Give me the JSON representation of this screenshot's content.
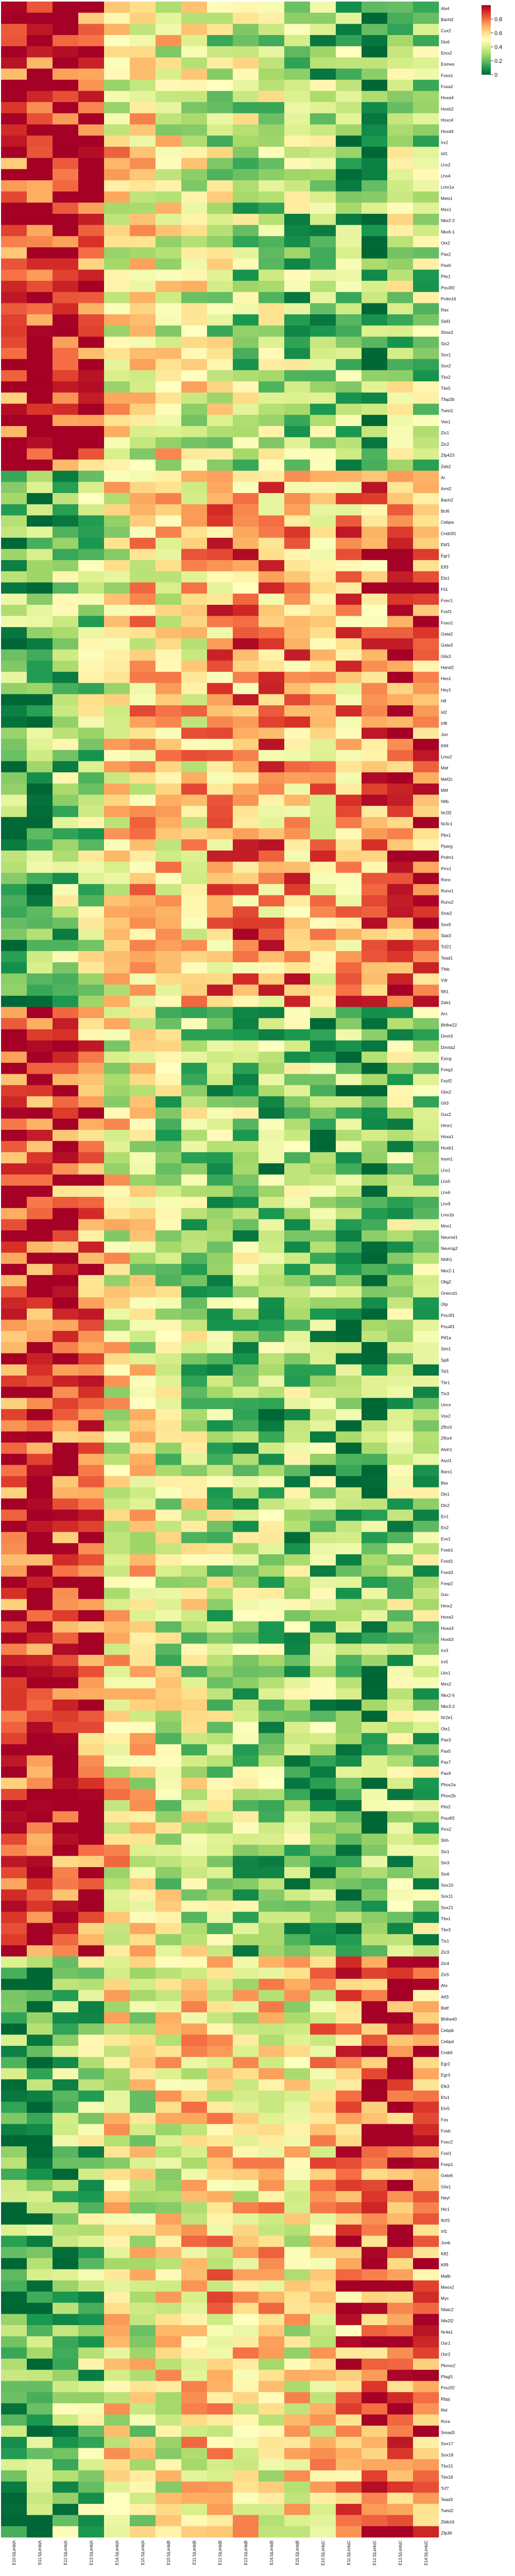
{
  "chart_data": {
    "type": "heatmap",
    "colormap": "RdYlGn_r",
    "colorbar": {
      "range": [
        0,
        1
      ],
      "ticks": [
        "0",
        "0.2",
        "0.4",
        "0.6",
        "0.8"
      ],
      "tick_values": [
        0,
        0.2,
        0.4,
        0.6,
        0.8
      ],
      "colors": [
        "#006837",
        "#1a9850",
        "#66bd63",
        "#a6d96a",
        "#d9ef8b",
        "#ffffbf",
        "#fee08b",
        "#fdae61",
        "#f46d43",
        "#d73027",
        "#a50026"
      ]
    },
    "columns": [
      "E10.5|Limb|A",
      "E11.5|Limb|A",
      "E12.5|Limb|A",
      "E13.5|Limb|A",
      "E14.5|Limb|A",
      "E15.5|Limb|A",
      "E10.5|Limb|B",
      "E11.5|Limb|B",
      "E12.5|Limb|B",
      "E13.5|Limb|B",
      "E14.5|Limb|B",
      "E15.5|Limb|B",
      "E10.5|Limb|C",
      "E11.5|Limb|C",
      "E12.5|Limb|C",
      "E13.5|Limb|C",
      "E14.5|Limb|C"
    ],
    "rows": [
      "Alx4",
      "Barhl2",
      "Cux2",
      "Dlx6",
      "Emx2",
      "Eomes",
      "Foxa1",
      "Foxa2",
      "Hoxa4",
      "Hoxb2",
      "Hoxc4",
      "Hoxd4",
      "Irx2",
      "Isl1",
      "Lhx2",
      "Lhx4",
      "Lmx1a",
      "Meis1",
      "Msx1",
      "Nkx2-2",
      "Nkx6-1",
      "Otx2",
      "Pax2",
      "Pax6",
      "Pitx1",
      "Pou3f2",
      "Prdm16",
      "Rax",
      "Sall1",
      "Shox2",
      "Six2",
      "Sox1",
      "Sox2",
      "Tbx2",
      "Tbx5",
      "Tfap2b",
      "Twist1",
      "Vax1",
      "Zic1",
      "Zic2",
      "Zfp423",
      "Zeb2",
      "Ar",
      "Arnt2",
      "Bach2",
      "Bcl6",
      "Cebpa",
      "Creb3l1",
      "Ebf1",
      "Egr1",
      "Elf3",
      "Ets1",
      "Fli1",
      "Foxc1",
      "Foxf1",
      "Foxo1",
      "Gata2",
      "Gata3",
      "Glis3",
      "Hand2",
      "Hes1",
      "Hey1",
      "Hlf",
      "Id2",
      "Irf8",
      "Jun",
      "Klf4",
      "Lmo2",
      "Maf",
      "Mef2c",
      "Mitf",
      "Nfib",
      "Nr2f2",
      "Nr3c1",
      "Pbx1",
      "Pparg",
      "Prdm1",
      "Prrx1",
      "Rora",
      "Runx1",
      "Runx2",
      "Snai2",
      "Sox9",
      "Stat3",
      "Tcf21",
      "Tead1",
      "Tfeb",
      "Vdr",
      "Wt1",
      "Zeb1",
      "Arx",
      "Bhlhe22",
      "Dmrt3",
      "Dmrta2",
      "Esrrg",
      "Foxg1",
      "Fezf2",
      "Gbx2",
      "Gli3",
      "Gsx2",
      "Hmx1",
      "Hoxa1",
      "Hoxb1",
      "Insm1",
      "Lhx1",
      "Lhx5",
      "Lhx6",
      "Lhx9",
      "Lmx1b",
      "Mnx1",
      "Neurod1",
      "Neurog2",
      "Nhlh1",
      "Nkx2-1",
      "Olig2",
      "Onecut1",
      "Otp",
      "Pou3f1",
      "Pou4f1",
      "Ptf1a",
      "Sim1",
      "Sp8",
      "Tal1",
      "Tbr1",
      "Tlx3",
      "Uncx",
      "Vsx2",
      "Zfhx3",
      "Zfhx4",
      "Atoh1",
      "Ascl1",
      "Barx1",
      "Bsx",
      "Dlx1",
      "Dlx2",
      "En1",
      "En2",
      "Evx1",
      "Foxb1",
      "Foxd1",
      "Foxd3",
      "Foxp2",
      "Gsc",
      "Hmx2",
      "Hoxa2",
      "Hoxa3",
      "Hoxb3",
      "Irx3",
      "Irx5",
      "Lbx1",
      "Msx2",
      "Nkx2-5",
      "Nkx3-2",
      "Nr2e1",
      "Otx1",
      "Pax3",
      "Pax5",
      "Pax7",
      "Pax9",
      "Phox2a",
      "Phox2b",
      "Pitx2",
      "Pou4f2",
      "Prrx2",
      "Shh",
      "Six1",
      "Six3",
      "Six6",
      "Sox10",
      "Sox11",
      "Sox21",
      "Tbx1",
      "Tbx3",
      "Tlx1",
      "Zic3",
      "Zic4",
      "Zic5",
      "Ahr",
      "Atf3",
      "Batf",
      "Bhlhe40",
      "Cebpb",
      "Cebpd",
      "Creb5",
      "Egr2",
      "Egr3",
      "Elk3",
      "Etv1",
      "Etv5",
      "Fos",
      "Fosb",
      "Foxc2",
      "Foxl1",
      "Foxp1",
      "Gata6",
      "Glis1",
      "Heyl",
      "Hic1",
      "Ikzf1",
      "Irf1",
      "Junb",
      "Klf2",
      "Klf9",
      "Mafb",
      "Meox2",
      "Myc",
      "Nfatc2",
      "Nfe2l2",
      "Nr4a1",
      "Osr1",
      "Osr2",
      "Pknox2",
      "Plagl1",
      "Pou2f2",
      "Rbpj",
      "Rel",
      "Rxra",
      "Smad3",
      "Sox17",
      "Sox18",
      "Tbx15",
      "Tbx18",
      "Tcf7",
      "Tead3",
      "Twist2",
      "Zbtb16",
      "Zfp36"
    ]
  }
}
